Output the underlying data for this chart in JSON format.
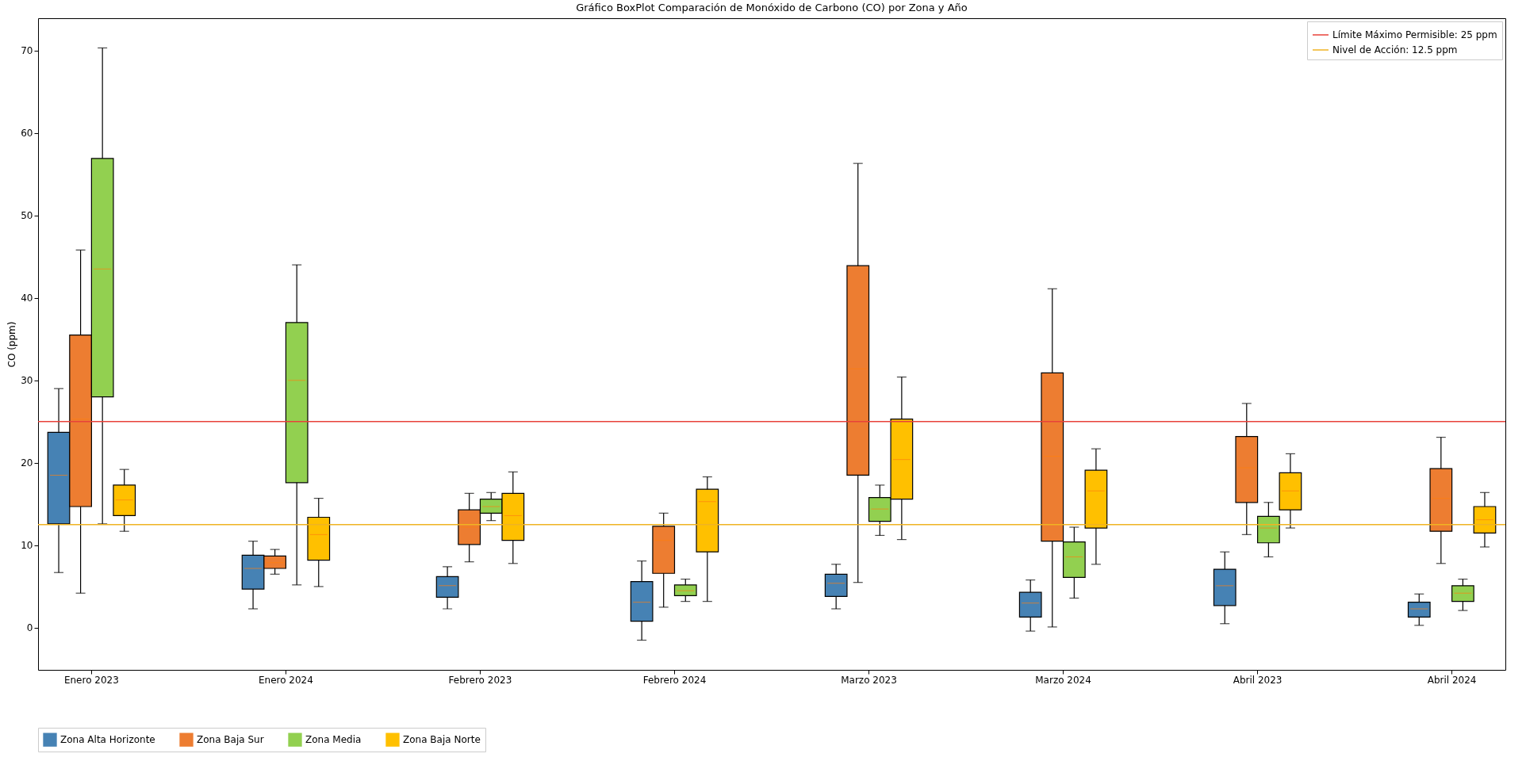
{
  "chart_data": {
    "type": "box",
    "title": "Gráfico BoxPlot Comparación de Monóxido de Carbono (CO) por Zona y Año",
    "ylabel": "CO (ppm)",
    "categories": [
      "Enero 2023",
      "Enero 2024",
      "Febrero 2023",
      "Febrero 2024",
      "Marzo 2023",
      "Marzo 2024",
      "Abril 2023",
      "Abril 2024"
    ],
    "ylim": [
      -5.1,
      73.9
    ],
    "yticks": [
      0,
      10,
      20,
      30,
      40,
      50,
      60,
      70
    ],
    "grid": false,
    "legend": "bottom",
    "series": [
      {
        "name": "Zona Alta Horizonte",
        "color": "#4682b4",
        "boxes": [
          {
            "low": 6.7,
            "q1": 12.6,
            "median": 18.5,
            "q3": 23.7,
            "high": 29.0
          },
          {
            "low": 2.3,
            "q1": 4.7,
            "median": 7.2,
            "q3": 8.8,
            "high": 10.5
          },
          {
            "low": 2.3,
            "q1": 3.7,
            "median": 5.1,
            "q3": 6.2,
            "high": 7.4
          },
          {
            "low": -1.5,
            "q1": 0.8,
            "median": 3.1,
            "q3": 5.6,
            "high": 8.1
          },
          {
            "low": 2.3,
            "q1": 3.8,
            "median": 5.4,
            "q3": 6.5,
            "high": 7.7
          },
          {
            "low": -0.4,
            "q1": 1.3,
            "median": 3.0,
            "q3": 4.3,
            "high": 5.8
          },
          {
            "low": 0.5,
            "q1": 2.7,
            "median": 5.1,
            "q3": 7.1,
            "high": 9.2
          },
          {
            "low": 0.3,
            "q1": 1.3,
            "median": 2.3,
            "q3": 3.1,
            "high": 4.1
          }
        ]
      },
      {
        "name": "Zona Baja Sur",
        "color": "#ed7d31",
        "boxes": [
          {
            "low": 4.2,
            "q1": 14.7,
            "median": 25.3,
            "q3": 35.5,
            "high": 45.8
          },
          {
            "low": 6.5,
            "q1": 7.2,
            "median": 7.9,
            "q3": 8.7,
            "high": 9.5
          },
          {
            "low": 8.0,
            "q1": 10.1,
            "median": 12.2,
            "q3": 14.3,
            "high": 16.3
          },
          {
            "low": 2.5,
            "q1": 6.6,
            "median": 10.6,
            "q3": 12.3,
            "high": 13.9
          },
          {
            "low": 5.5,
            "q1": 18.5,
            "median": 31.4,
            "q3": 43.9,
            "high": 56.3
          },
          {
            "low": 0.1,
            "q1": 10.5,
            "median": 20.8,
            "q3": 30.9,
            "high": 41.1
          },
          {
            "low": 11.3,
            "q1": 15.2,
            "median": 19.4,
            "q3": 23.2,
            "high": 27.2
          },
          {
            "low": 7.8,
            "q1": 11.7,
            "median": 15.7,
            "q3": 19.3,
            "high": 23.1
          }
        ]
      },
      {
        "name": "Zona Media",
        "color": "#92d050",
        "boxes": [
          {
            "low": 12.6,
            "q1": 28.0,
            "median": 43.5,
            "q3": 56.9,
            "high": 70.3
          },
          {
            "low": 5.2,
            "q1": 17.6,
            "median": 30.0,
            "q3": 37.0,
            "high": 44.0
          },
          {
            "low": 13.0,
            "q1": 13.9,
            "median": 14.7,
            "q3": 15.6,
            "high": 16.4
          },
          {
            "low": 3.2,
            "q1": 3.9,
            "median": 4.5,
            "q3": 5.2,
            "high": 5.9
          },
          {
            "low": 11.2,
            "q1": 12.9,
            "median": 14.4,
            "q3": 15.8,
            "high": 17.3
          },
          {
            "low": 3.6,
            "q1": 6.1,
            "median": 8.6,
            "q3": 10.4,
            "high": 12.2
          },
          {
            "low": 8.6,
            "q1": 10.3,
            "median": 12.1,
            "q3": 13.5,
            "high": 15.2
          },
          {
            "low": 2.1,
            "q1": 3.2,
            "median": 4.2,
            "q3": 5.1,
            "high": 5.9
          }
        ]
      },
      {
        "name": "Zona Baja Norte",
        "color": "#ffc000",
        "boxes": [
          {
            "low": 11.7,
            "q1": 13.6,
            "median": 15.5,
            "q3": 17.3,
            "high": 19.2
          },
          {
            "low": 5.0,
            "q1": 8.2,
            "median": 11.3,
            "q3": 13.4,
            "high": 15.7
          },
          {
            "low": 7.8,
            "q1": 10.6,
            "median": 13.6,
            "q3": 16.3,
            "high": 18.9
          },
          {
            "low": 3.2,
            "q1": 9.2,
            "median": 15.3,
            "q3": 16.8,
            "high": 18.3
          },
          {
            "low": 10.7,
            "q1": 15.6,
            "median": 20.4,
            "q3": 25.3,
            "high": 30.4
          },
          {
            "low": 7.7,
            "q1": 12.1,
            "median": 16.6,
            "q3": 19.1,
            "high": 21.7
          },
          {
            "low": 12.1,
            "q1": 14.3,
            "median": 16.6,
            "q3": 18.8,
            "high": 21.1
          },
          {
            "low": 9.8,
            "q1": 11.5,
            "median": 13.1,
            "q3": 14.7,
            "high": 16.4
          }
        ]
      }
    ],
    "ref_lines": [
      {
        "axis": "y",
        "value": 25,
        "label": "Límite Máximo Permisible: 25 ppm",
        "color": "#e8423a"
      },
      {
        "axis": "y",
        "value": 12.5,
        "label": "Nivel de Acción: 12.5 ppm",
        "color": "#f0b323"
      }
    ]
  }
}
